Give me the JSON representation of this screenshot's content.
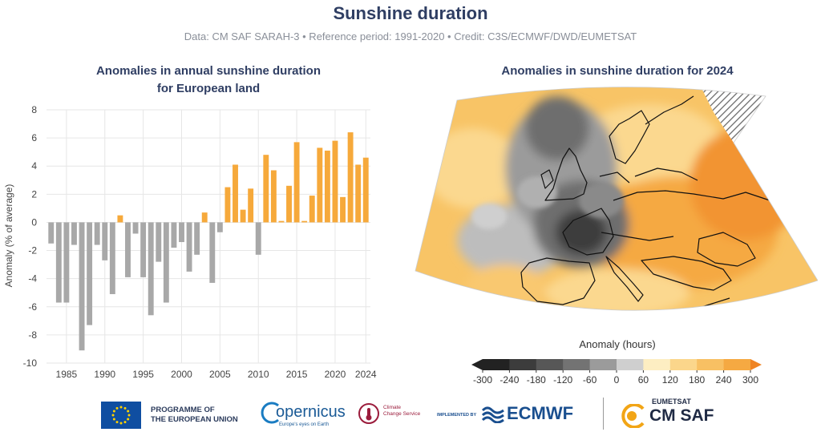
{
  "header": {
    "title": "Sunshine duration",
    "subtitle": "Data: CM SAF SARAH-3 • Reference period: 1991-2020 • Credit: C3S/ECMWF/DWD/EUMETSAT"
  },
  "left_panel": {
    "title_line1": "Anomalies in annual sunshine duration",
    "title_line2": "for European land"
  },
  "right_panel": {
    "title": "Anomalies in sunshine duration for 2024",
    "colorbar_label": "Anomaly (hours)",
    "colorbar_ticks": [
      "-300",
      "-240",
      "-180",
      "-120",
      "-60",
      "0",
      "60",
      "120",
      "180",
      "240",
      "300"
    ],
    "colorbar_colors": [
      "#222222",
      "#3c3c3c",
      "#575757",
      "#737373",
      "#9b9b9b",
      "#cfcfcf",
      "#fdeec2",
      "#fbd68b",
      "#f8c063",
      "#f5a942",
      "#f29430",
      "#ef8424"
    ]
  },
  "colors": {
    "negative": "#a8a8a8",
    "positive": "#f6a93b",
    "title": "#2f3e63"
  },
  "chart_data": {
    "type": "bar",
    "title": "Anomalies in annual sunshine duration for European land",
    "ylabel": "Anomaly (% of average)",
    "xlabel": "",
    "ylim": [
      -10,
      8
    ],
    "yticks": [
      -10,
      -8,
      -6,
      -4,
      -2,
      0,
      2,
      4,
      6,
      8
    ],
    "xticks": [
      1985,
      1990,
      1995,
      2000,
      2005,
      2010,
      2015,
      2020,
      2024
    ],
    "grid": true,
    "x": [
      1983,
      1984,
      1985,
      1986,
      1987,
      1988,
      1989,
      1990,
      1991,
      1992,
      1993,
      1994,
      1995,
      1996,
      1997,
      1998,
      1999,
      2000,
      2001,
      2002,
      2003,
      2004,
      2005,
      2006,
      2007,
      2008,
      2009,
      2010,
      2011,
      2012,
      2013,
      2014,
      2015,
      2016,
      2017,
      2018,
      2019,
      2020,
      2021,
      2022,
      2023,
      2024
    ],
    "values": [
      -1.5,
      -5.7,
      -5.7,
      -1.6,
      -9.1,
      -7.3,
      -1.6,
      -2.7,
      -5.1,
      0.5,
      -3.9,
      -0.8,
      -3.9,
      -6.6,
      -2.8,
      -5.7,
      -1.8,
      -1.4,
      -3.5,
      -2.3,
      0.7,
      -4.3,
      -0.7,
      2.5,
      4.1,
      0.9,
      2.4,
      -2.3,
      4.8,
      3.7,
      0.1,
      2.6,
      5.7,
      0.1,
      1.9,
      5.3,
      5.1,
      5.8,
      1.8,
      6.4,
      4.1,
      4.6
    ]
  },
  "logos": {
    "eu_line1": "PROGRAMME OF",
    "eu_line2": "THE EUROPEAN UNION",
    "copernicus": "opernicus",
    "copernicus_tag": "Europe's eyes on Earth",
    "c3s_line1": "Climate",
    "c3s_line2": "Change Service",
    "implemented_by": "IMPLEMENTED BY",
    "ecmwf": "ECMWF",
    "eumetsat": "EUMETSAT",
    "cmsaf": "CM SAF"
  }
}
